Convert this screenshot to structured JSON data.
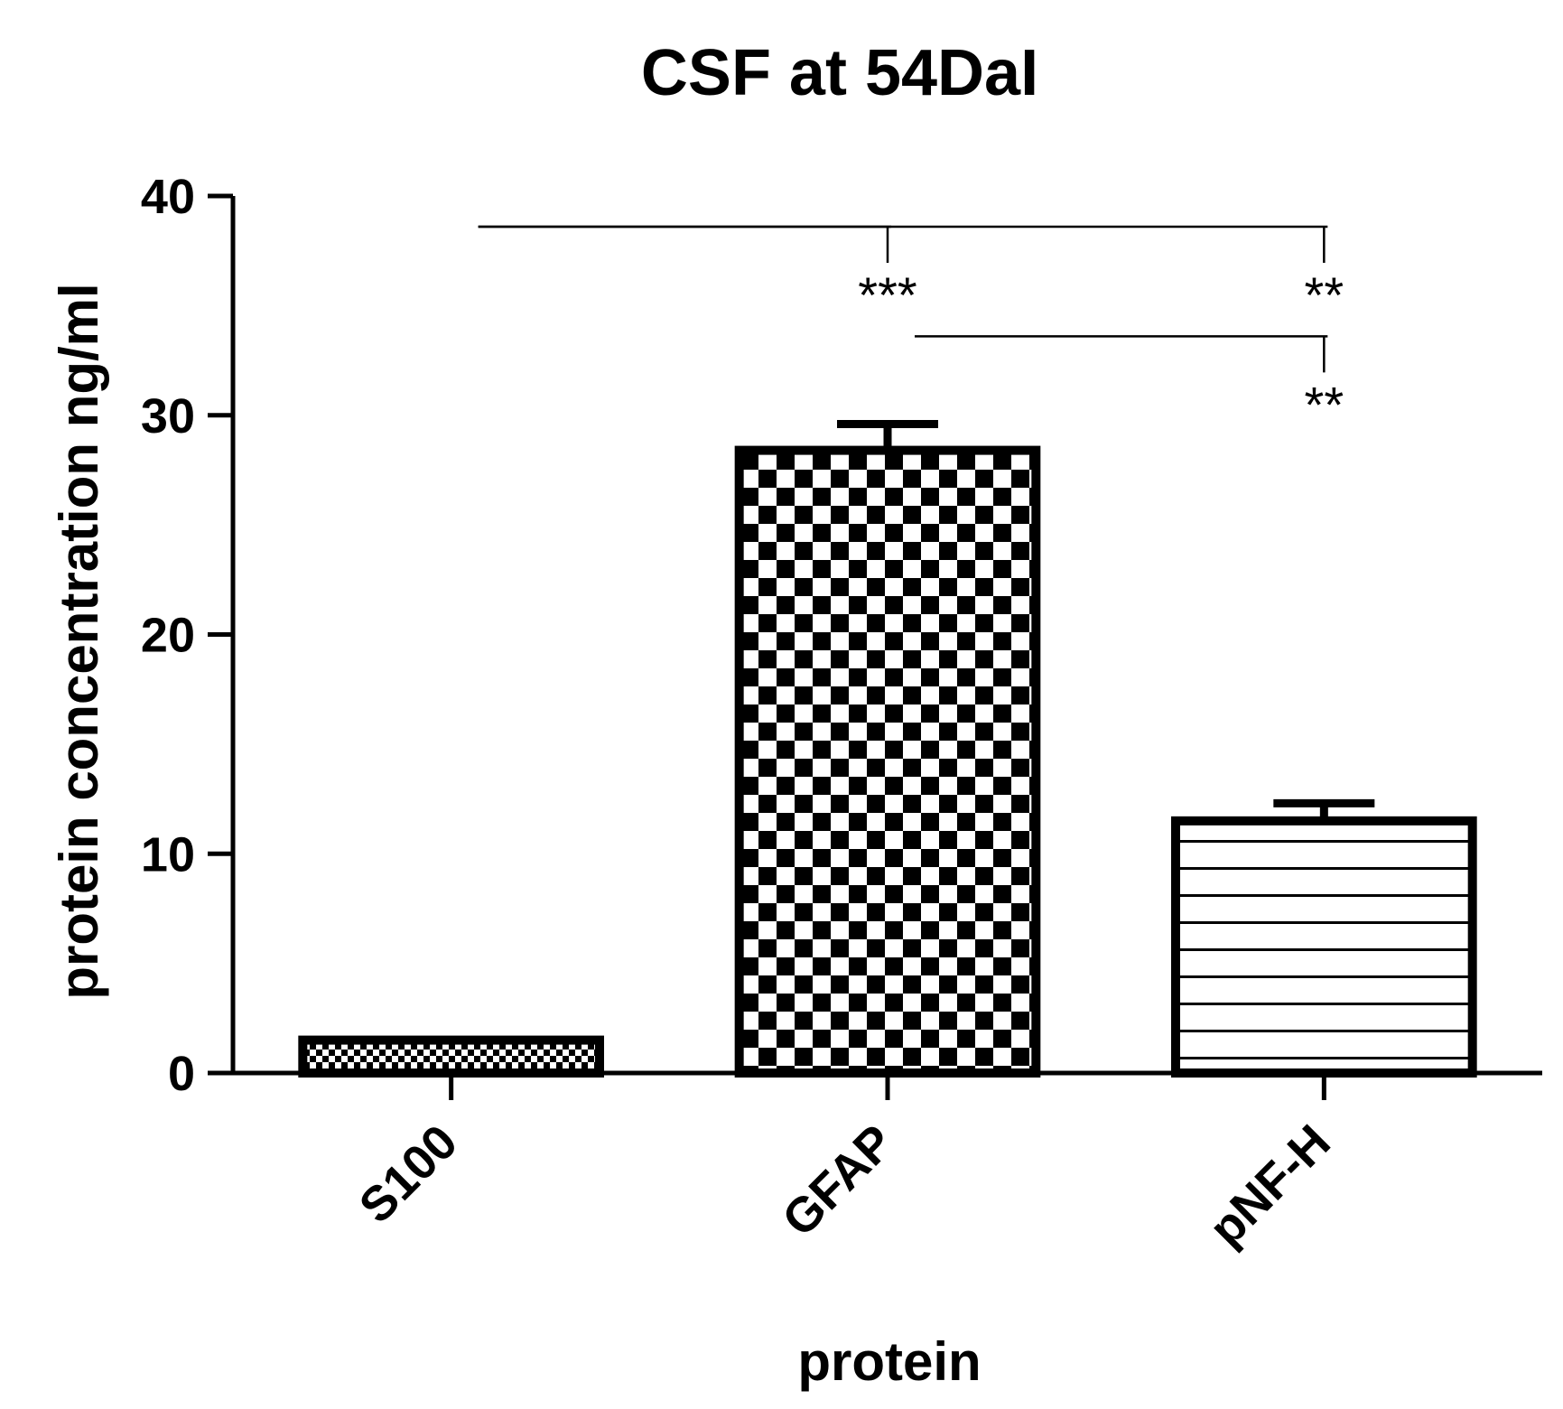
{
  "chart_data": {
    "type": "bar",
    "title": "CSF at 54DaI",
    "xlabel": "protein",
    "ylabel": "protein concentration ng/ml",
    "ylim": [
      0,
      40
    ],
    "yticks": [
      0,
      10,
      20,
      30,
      40
    ],
    "categories": [
      "S100",
      "GFAP",
      "pNF-H"
    ],
    "values": [
      1.5,
      28.4,
      11.5
    ],
    "errors": [
      0,
      1.2,
      0.8
    ],
    "fill_patterns": [
      "fine-checker",
      "checker",
      "horizontal-lines"
    ],
    "grid": false,
    "legend": "none",
    "significance": [
      {
        "from": "S100",
        "to": "GFAP",
        "label": "***",
        "y": 38.6
      },
      {
        "from": "S100",
        "to": "pNF-H",
        "label": "**",
        "y": 38.6
      },
      {
        "from": "GFAP",
        "to": "pNF-H",
        "label": "**",
        "y": 33.6
      }
    ]
  }
}
